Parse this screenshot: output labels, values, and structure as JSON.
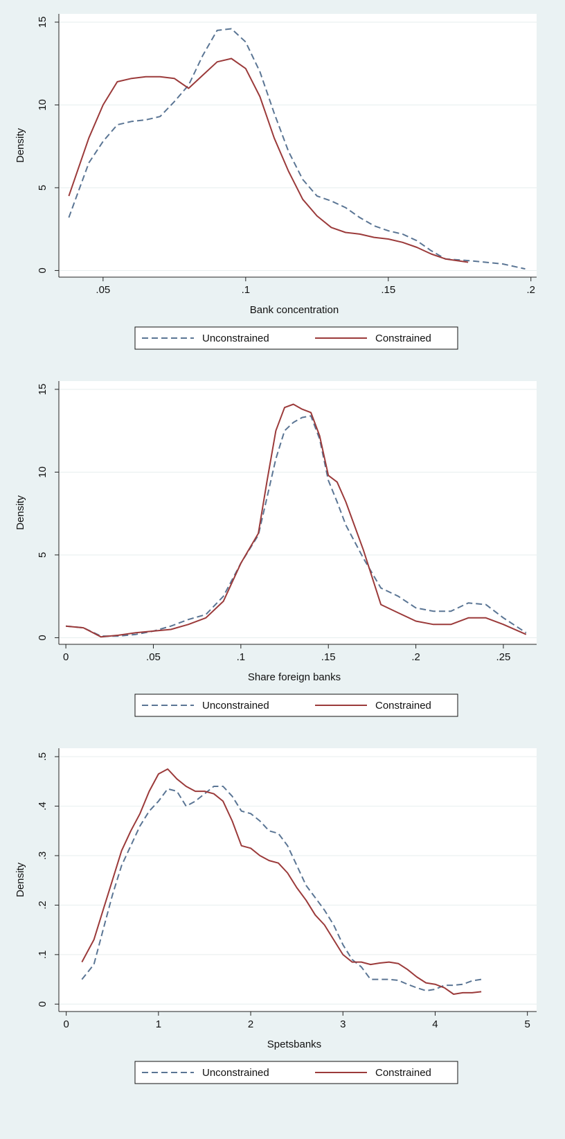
{
  "chart_data": [
    {
      "type": "line",
      "xlabel": "Bank concentration",
      "ylabel": "Density",
      "grid": true,
      "legend": "bottom",
      "x": [
        0.038,
        0.045,
        0.05,
        0.055,
        0.06,
        0.065,
        0.07,
        0.075,
        0.08,
        0.085,
        0.09,
        0.095,
        0.1,
        0.105,
        0.11,
        0.115,
        0.12,
        0.125,
        0.13,
        0.135,
        0.14,
        0.145,
        0.15,
        0.155,
        0.16,
        0.165,
        0.17,
        0.178,
        0.19,
        0.198
      ],
      "xlim": [
        0.0345,
        0.202
      ],
      "xticks": [
        {
          "value": 0.05,
          "label": ".05"
        },
        {
          "value": 0.1,
          "label": ".1"
        },
        {
          "value": 0.15,
          "label": ".15"
        },
        {
          "value": 0.2,
          "label": ".2"
        }
      ],
      "ylim": [
        -0.4,
        15.5
      ],
      "yticks": [
        0,
        5,
        10,
        15
      ],
      "series": [
        {
          "name": "Unconstrained",
          "color": "#5a7594",
          "dash": true,
          "values": [
            3.2,
            6.5,
            7.8,
            8.8,
            9,
            9.1,
            9.3,
            10.2,
            11.2,
            13,
            14.5,
            14.6,
            13.8,
            12,
            9.5,
            7.2,
            5.5,
            4.5,
            4.2,
            3.8,
            3.2,
            2.7,
            2.4,
            2.2,
            1.8,
            1.2,
            0.7,
            0.6,
            0.4,
            0.1
          ]
        },
        {
          "name": "Constrained",
          "color": "#9b3a3a",
          "dash": false,
          "values": [
            4.5,
            8,
            10,
            11.4,
            11.6,
            11.7,
            11.7,
            11.6,
            11,
            11.8,
            12.6,
            12.8,
            12.2,
            10.5,
            8,
            6,
            4.3,
            3.3,
            2.6,
            2.3,
            2.2,
            2.0,
            1.9,
            1.7,
            1.4,
            1.0,
            0.7,
            0.5,
            null,
            null
          ]
        }
      ]
    },
    {
      "type": "line",
      "xlabel": "Share foreign banks",
      "ylabel": "Density",
      "grid": true,
      "legend": "bottom",
      "x": [
        0,
        0.01,
        0.02,
        0.03,
        0.04,
        0.05,
        0.06,
        0.07,
        0.08,
        0.09,
        0.1,
        0.11,
        0.115,
        0.12,
        0.125,
        0.13,
        0.135,
        0.14,
        0.145,
        0.15,
        0.155,
        0.16,
        0.17,
        0.18,
        0.19,
        0.2,
        0.21,
        0.22,
        0.23,
        0.24,
        0.25,
        0.263
      ],
      "xlim": [
        -0.004,
        0.269
      ],
      "xticks": [
        0,
        {
          "value": 0.05,
          "label": ".05"
        },
        {
          "value": 0.1,
          "label": ".1"
        },
        {
          "value": 0.15,
          "label": ".15"
        },
        {
          "value": 0.2,
          "label": ".2"
        },
        {
          "value": 0.25,
          "label": ".25"
        }
      ],
      "ylim": [
        -0.4,
        15.5
      ],
      "yticks": [
        0,
        5,
        10,
        15
      ],
      "series": [
        {
          "name": "Unconstrained",
          "color": "#5a7594",
          "dash": true,
          "values": [
            0.7,
            0.6,
            0.1,
            0.1,
            0.2,
            0.4,
            0.7,
            1.1,
            1.4,
            2.5,
            4.5,
            6.2,
            8.5,
            10.8,
            12.5,
            13,
            13.3,
            13.4,
            12,
            9.5,
            8.2,
            6.8,
            4.8,
            3,
            2.5,
            1.8,
            1.6,
            1.6,
            2.1,
            2.0,
            1.2,
            0.3
          ]
        },
        {
          "name": "Constrained",
          "color": "#9b3a3a",
          "dash": false,
          "values": [
            0.7,
            0.6,
            0.05,
            0.15,
            0.3,
            0.4,
            0.5,
            0.8,
            1.2,
            2.2,
            4.5,
            6.3,
            9.5,
            12.5,
            13.9,
            14.1,
            13.8,
            13.6,
            12.2,
            9.8,
            9.4,
            8.2,
            5.3,
            2,
            1.5,
            1.0,
            0.8,
            0.8,
            1.2,
            1.2,
            0.8,
            0.2
          ]
        }
      ]
    },
    {
      "type": "line",
      "xlabel": "Spetsbanks",
      "ylabel": "Density",
      "grid": true,
      "legend": "bottom",
      "x": [
        0.17,
        0.3,
        0.4,
        0.5,
        0.6,
        0.7,
        0.8,
        0.9,
        1,
        1.1,
        1.2,
        1.3,
        1.4,
        1.5,
        1.6,
        1.7,
        1.8,
        1.9,
        2,
        2.1,
        2.2,
        2.3,
        2.4,
        2.5,
        2.6,
        2.7,
        2.8,
        2.9,
        3,
        3.1,
        3.2,
        3.3,
        3.4,
        3.5,
        3.6,
        3.7,
        3.8,
        3.9,
        4,
        4.1,
        4.2,
        4.3,
        4.4,
        4.5
      ],
      "xlim": [
        -0.08,
        5.1
      ],
      "xticks": [
        0,
        1,
        2,
        3,
        4,
        5
      ],
      "ylim": [
        -0.015,
        0.517
      ],
      "yticks": [
        0,
        {
          "value": 0.1,
          "label": ".1"
        },
        {
          "value": 0.2,
          "label": ".2"
        },
        {
          "value": 0.3,
          "label": ".3"
        },
        {
          "value": 0.4,
          "label": ".4"
        },
        {
          "value": 0.5,
          "label": ".5"
        }
      ],
      "series": [
        {
          "name": "Unconstrained",
          "color": "#5a7594",
          "dash": true,
          "values": [
            0.05,
            0.08,
            0.15,
            0.22,
            0.28,
            0.32,
            0.36,
            0.39,
            0.41,
            0.435,
            0.43,
            0.4,
            0.41,
            0.425,
            0.44,
            0.44,
            0.42,
            0.39,
            0.385,
            0.37,
            0.35,
            0.345,
            0.32,
            0.28,
            0.24,
            0.215,
            0.19,
            0.16,
            0.12,
            0.09,
            0.075,
            0.05,
            0.05,
            0.05,
            0.048,
            0.04,
            0.033,
            0.027,
            0.03,
            0.038,
            0.038,
            0.04,
            0.047,
            0.05
          ]
        },
        {
          "name": "Constrained",
          "color": "#9b3a3a",
          "dash": false,
          "values": [
            0.085,
            0.13,
            0.19,
            0.25,
            0.31,
            0.35,
            0.385,
            0.43,
            0.465,
            0.475,
            0.455,
            0.44,
            0.43,
            0.43,
            0.425,
            0.41,
            0.37,
            0.32,
            0.315,
            0.3,
            0.29,
            0.285,
            0.265,
            0.235,
            0.21,
            0.18,
            0.16,
            0.13,
            0.1,
            0.085,
            0.085,
            0.08,
            0.083,
            0.085,
            0.082,
            0.07,
            0.055,
            0.043,
            0.04,
            0.033,
            0.02,
            0.023,
            0.023,
            0.025
          ]
        }
      ]
    }
  ]
}
